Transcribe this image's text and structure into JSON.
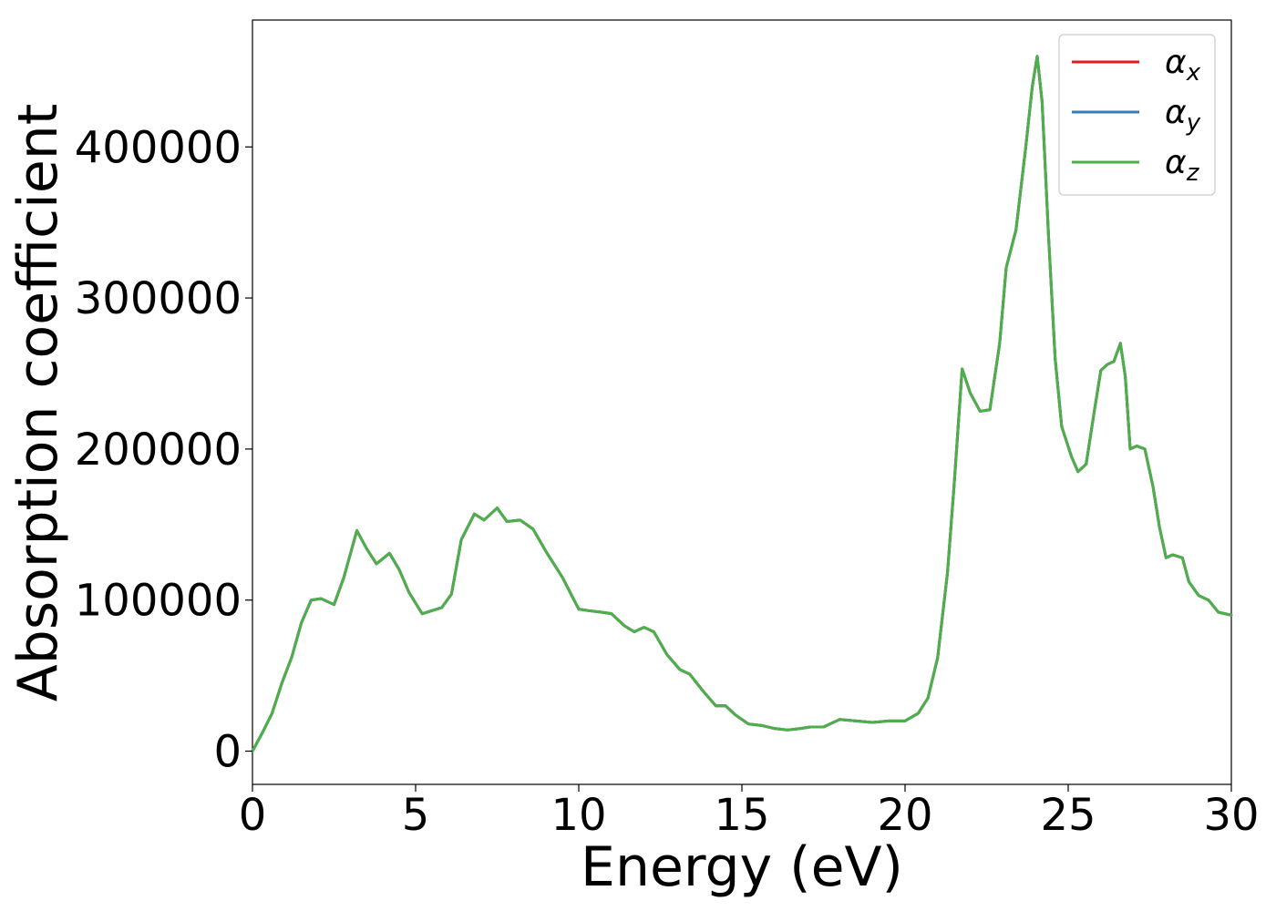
{
  "chart_data": {
    "type": "line",
    "xlabel": "Energy (eV)",
    "ylabel": "Absorption coefficient",
    "xlim": [
      0,
      30
    ],
    "ylim": [
      -22000,
      484000
    ],
    "xticks": [
      0,
      5,
      10,
      15,
      20,
      25,
      30
    ],
    "yticks": [
      0,
      100000,
      200000,
      300000,
      400000
    ],
    "grid": false,
    "legend_position": "top-right",
    "x": [
      0,
      0.3,
      0.6,
      0.9,
      1.2,
      1.5,
      1.8,
      2.1,
      2.5,
      2.8,
      3.2,
      3.5,
      3.8,
      4.2,
      4.5,
      4.8,
      5.2,
      5.5,
      5.8,
      6.1,
      6.4,
      6.8,
      7.1,
      7.5,
      7.8,
      8.2,
      8.6,
      9.0,
      9.5,
      10.0,
      10.3,
      10.7,
      11.0,
      11.4,
      11.7,
      12.0,
      12.3,
      12.7,
      13.1,
      13.4,
      13.8,
      14.2,
      14.5,
      14.8,
      15.2,
      15.6,
      16.0,
      16.4,
      16.8,
      17.1,
      17.5,
      18.0,
      18.5,
      19.0,
      19.5,
      20.0,
      20.4,
      20.7,
      21.0,
      21.3,
      21.5,
      21.75,
      22.0,
      22.3,
      22.6,
      22.9,
      23.1,
      23.4,
      23.7,
      23.9,
      24.05,
      24.2,
      24.4,
      24.6,
      24.8,
      25.1,
      25.3,
      25.55,
      25.8,
      26.0,
      26.2,
      26.4,
      26.6,
      26.75,
      26.9,
      27.1,
      27.35,
      27.6,
      27.8,
      28.0,
      28.2,
      28.5,
      28.7,
      29.0,
      29.3,
      29.6,
      29.8,
      30.0
    ],
    "series": [
      {
        "name": "α_x",
        "label_main": "α",
        "label_sub": "x",
        "color": "#e41a1c",
        "values": [
          0,
          12000,
          25000,
          45000,
          62000,
          85000,
          100000,
          101000,
          97000,
          115000,
          146000,
          134000,
          124000,
          131000,
          120000,
          105000,
          91000,
          93000,
          95000,
          104000,
          140000,
          157000,
          153000,
          161000,
          152000,
          153000,
          147000,
          132000,
          115000,
          94000,
          93000,
          92000,
          91000,
          83000,
          79000,
          82000,
          79000,
          64000,
          54000,
          51000,
          40000,
          30000,
          30000,
          24000,
          18000,
          17000,
          15000,
          14000,
          15000,
          16000,
          16000,
          21000,
          20000,
          19000,
          20000,
          20000,
          25000,
          35000,
          62000,
          118000,
          175000,
          253000,
          237000,
          225000,
          226000,
          270000,
          320000,
          345000,
          400000,
          440000,
          460000,
          430000,
          340000,
          260000,
          215000,
          195000,
          185000,
          190000,
          225000,
          252000,
          256000,
          258000,
          270000,
          248000,
          200000,
          202000,
          200000,
          175000,
          148000,
          128000,
          130000,
          128000,
          112000,
          103000,
          100000,
          92000,
          91000,
          90000
        ]
      },
      {
        "name": "α_y",
        "label_main": "α",
        "label_sub": "y",
        "color": "#377eb8",
        "values": [
          0,
          12000,
          25000,
          45000,
          62000,
          85000,
          100000,
          101000,
          97000,
          115000,
          146000,
          134000,
          124000,
          131000,
          120000,
          105000,
          91000,
          93000,
          95000,
          104000,
          140000,
          157000,
          153000,
          161000,
          152000,
          153000,
          147000,
          132000,
          115000,
          94000,
          93000,
          92000,
          91000,
          83000,
          79000,
          82000,
          79000,
          64000,
          54000,
          51000,
          40000,
          30000,
          30000,
          24000,
          18000,
          17000,
          15000,
          14000,
          15000,
          16000,
          16000,
          21000,
          20000,
          19000,
          20000,
          20000,
          25000,
          35000,
          62000,
          118000,
          175000,
          253000,
          237000,
          225000,
          226000,
          270000,
          320000,
          345000,
          400000,
          440000,
          460000,
          430000,
          340000,
          260000,
          215000,
          195000,
          185000,
          190000,
          225000,
          252000,
          256000,
          258000,
          270000,
          248000,
          200000,
          202000,
          200000,
          175000,
          148000,
          128000,
          130000,
          128000,
          112000,
          103000,
          100000,
          92000,
          91000,
          90000
        ]
      },
      {
        "name": "α_z",
        "label_main": "α",
        "label_sub": "z",
        "color": "#4daf4a",
        "values": [
          0,
          12000,
          25000,
          45000,
          62000,
          85000,
          100000,
          101000,
          97000,
          115000,
          146000,
          134000,
          124000,
          131000,
          120000,
          105000,
          91000,
          93000,
          95000,
          104000,
          140000,
          157000,
          153000,
          161000,
          152000,
          153000,
          147000,
          132000,
          115000,
          94000,
          93000,
          92000,
          91000,
          83000,
          79000,
          82000,
          79000,
          64000,
          54000,
          51000,
          40000,
          30000,
          30000,
          24000,
          18000,
          17000,
          15000,
          14000,
          15000,
          16000,
          16000,
          21000,
          20000,
          19000,
          20000,
          20000,
          25000,
          35000,
          62000,
          118000,
          175000,
          253000,
          237000,
          225000,
          226000,
          270000,
          320000,
          345000,
          400000,
          440000,
          460000,
          430000,
          340000,
          260000,
          215000,
          195000,
          185000,
          190000,
          225000,
          252000,
          256000,
          258000,
          270000,
          248000,
          200000,
          202000,
          200000,
          175000,
          148000,
          128000,
          130000,
          128000,
          112000,
          103000,
          100000,
          92000,
          91000,
          90000
        ]
      }
    ]
  }
}
